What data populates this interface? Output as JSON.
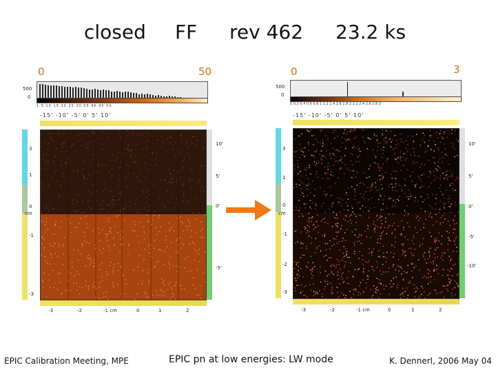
{
  "slide": {
    "title_closed": "closed",
    "title_mode": "FF",
    "title_rev": "rev 462",
    "title_exposure": "23.2 ks",
    "left_scale_min": "0",
    "left_scale_max": "50",
    "right_scale_min": "0",
    "right_scale_max": "3",
    "footer_left": "EPIC Calibration Meeting, MPE",
    "footer_center": "EPIC pn at low energies: LW mode",
    "footer_right": "K. Dennerl, 2006 May 04"
  },
  "left_panel": {
    "hist_ylabel_top": "500",
    "hist_ylabel_bottom": "0",
    "colorbar_ticks": "1    5    10    15    20    25    30    35    40    45    50",
    "top_axis": "-15'    -10'    -5'    0'    5'    10'",
    "right_axis": [
      "10'",
      "5'",
      "0'",
      "-5'"
    ],
    "left_axis": [
      "3",
      "2",
      "1",
      "0",
      "-1",
      "-2",
      "-3"
    ],
    "bottom_axis": [
      "-3",
      "-2",
      "-1  cm",
      "0",
      "1",
      "2"
    ],
    "cm_label": "cm"
  },
  "right_panel": {
    "hist_ylabel_top": "500",
    "hist_ylabel_bottom": "0",
    "colorbar_ticks": "0   0.2   0.4   0.6   0.8   1   1.2   1.4   1.6   1.8   2   2.2   2.4   2.6   2.8   3",
    "top_axis": "-15'    -10'    -5'    0'    5'    10'",
    "right_axis": [
      "10'",
      "5'",
      "0'",
      "-5'",
      "-10'"
    ],
    "left_axis": [
      "3",
      "2",
      "1",
      "0",
      "-1",
      "-2",
      "-3"
    ],
    "bottom_axis": [
      "-3",
      "-2",
      "-1  cm",
      "0",
      "1",
      "2"
    ],
    "cm_label": "cm"
  },
  "colors": {
    "accent_orange": "#f07818",
    "detector_dark": "#2a1508",
    "detector_bright": "#b04a12"
  }
}
